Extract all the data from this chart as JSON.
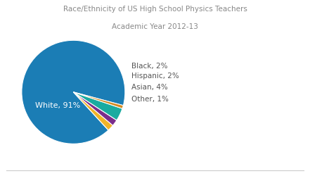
{
  "title_line1": "Race/Ethnicity of US High School Physics Teachers",
  "title_line2": "Academic Year 2012-13",
  "labels": [
    "White",
    "Black",
    "Hispanic",
    "Asian",
    "Other"
  ],
  "values": [
    91,
    2,
    2,
    4,
    1
  ],
  "colors": [
    "#1b7db5",
    "#f0b429",
    "#7b2d8b",
    "#1aaba0",
    "#d48a20"
  ],
  "background_color": "#ffffff",
  "title_fontsize": 7.5,
  "label_fontsize": 7.5,
  "white_label_fontsize": 8
}
